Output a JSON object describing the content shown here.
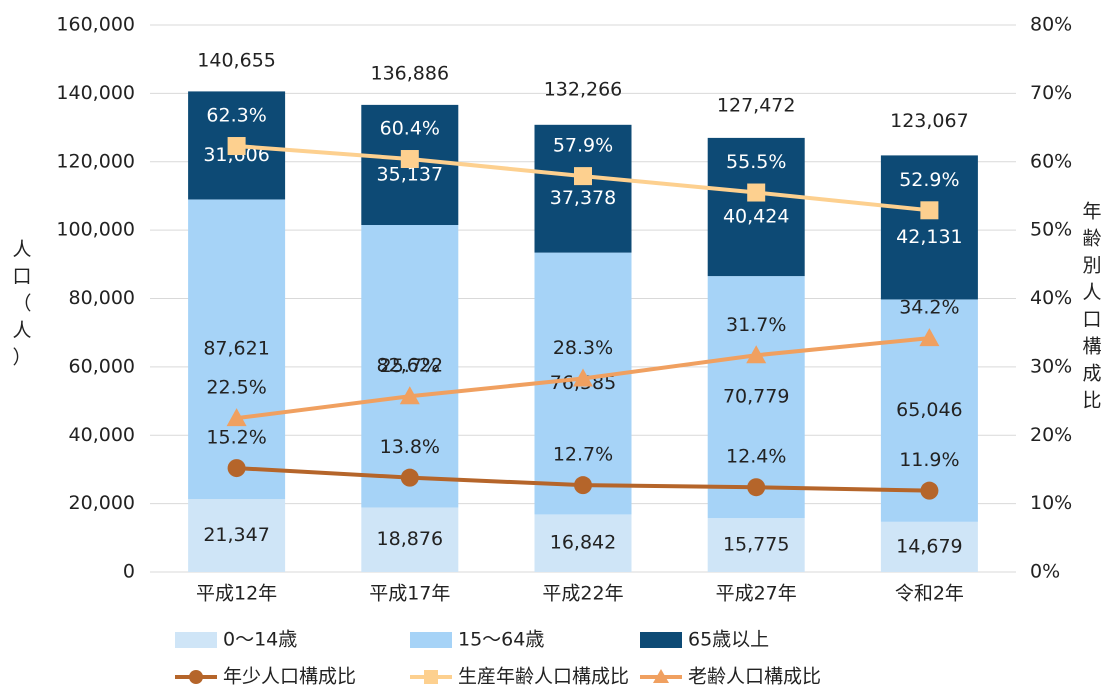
{
  "chart_data": {
    "type": "bar",
    "y_label": "人口（人）",
    "y2_label": "年齢別人口構成比",
    "categories": [
      "平成12年",
      "平成17年",
      "平成22年",
      "平成27年",
      "令和2年"
    ],
    "totals": [
      140655,
      136886,
      132266,
      127472,
      123067
    ],
    "total_labels": [
      "140,655",
      "136,886",
      "132,266",
      "127,472",
      "123,067"
    ],
    "series": [
      {
        "name": "0～14歳",
        "color": "#cfe5f7",
        "values": [
          21347,
          18876,
          16842,
          15775,
          14679
        ],
        "value_labels": [
          "21,347",
          "18,876",
          "16,842",
          "15,775",
          "14,679"
        ]
      },
      {
        "name": "15～64歳",
        "color": "#a6d3f7",
        "values": [
          87621,
          82622,
          76585,
          70779,
          65046
        ],
        "value_labels": [
          "87,621",
          "82,622",
          "76,585",
          "70,779",
          "65,046"
        ]
      },
      {
        "name": "65歳以上",
        "color": "#0d4a75",
        "values": [
          31606,
          35137,
          37378,
          40424,
          42131
        ],
        "value_labels": [
          "31,606",
          "35,137",
          "37,378",
          "40,424",
          "42,131"
        ]
      },
      {
        "name": "年少人口構成比",
        "type": "line",
        "axis": "y2",
        "marker": "circle",
        "color": "#b5652a",
        "values": [
          15.2,
          13.8,
          12.7,
          12.4,
          11.9
        ],
        "value_labels": [
          "15.2%",
          "13.8%",
          "12.7%",
          "12.4%",
          "11.9%"
        ]
      },
      {
        "name": "生産年齢人口構成比",
        "type": "line",
        "axis": "y2",
        "marker": "square",
        "color": "#fdd08f",
        "values": [
          62.3,
          60.4,
          57.9,
          55.5,
          52.9
        ],
        "value_labels": [
          "62.3%",
          "60.4%",
          "57.9%",
          "55.5%",
          "52.9%"
        ]
      },
      {
        "name": "老齢人口構成比",
        "type": "line",
        "axis": "y2",
        "marker": "triangle",
        "color": "#f0a060",
        "values": [
          22.5,
          25.7,
          28.3,
          31.7,
          34.2
        ],
        "value_labels": [
          "22.5%",
          "25.7%",
          "28.3%",
          "31.7%",
          "34.2%"
        ]
      }
    ],
    "ylim": [
      0,
      160000
    ],
    "yticks": [
      0,
      {
        "value": 20000,
        "label": "20,000"
      },
      {
        "value": 40000,
        "label": "40,000"
      },
      {
        "value": 60000,
        "label": "60,000"
      },
      {
        "value": 80000,
        "label": "80,000"
      },
      {
        "value": 100000,
        "label": "100,000"
      },
      {
        "value": 120000,
        "label": "120,000"
      },
      {
        "value": 140000,
        "label": "140,000"
      },
      {
        "value": 160000,
        "label": "160,000"
      }
    ],
    "y2lim": [
      0,
      80
    ],
    "y2ticks": [
      {
        "value": 0,
        "label": "0%"
      },
      {
        "value": 10,
        "label": "10%"
      },
      {
        "value": 20,
        "label": "20%"
      },
      {
        "value": 30,
        "label": "30%"
      },
      {
        "value": 40,
        "label": "40%"
      },
      {
        "value": 50,
        "label": "50%"
      },
      {
        "value": 60,
        "label": "60%"
      },
      {
        "value": 70,
        "label": "70%"
      },
      {
        "value": 80,
        "label": "80%"
      }
    ],
    "grid": true
  }
}
